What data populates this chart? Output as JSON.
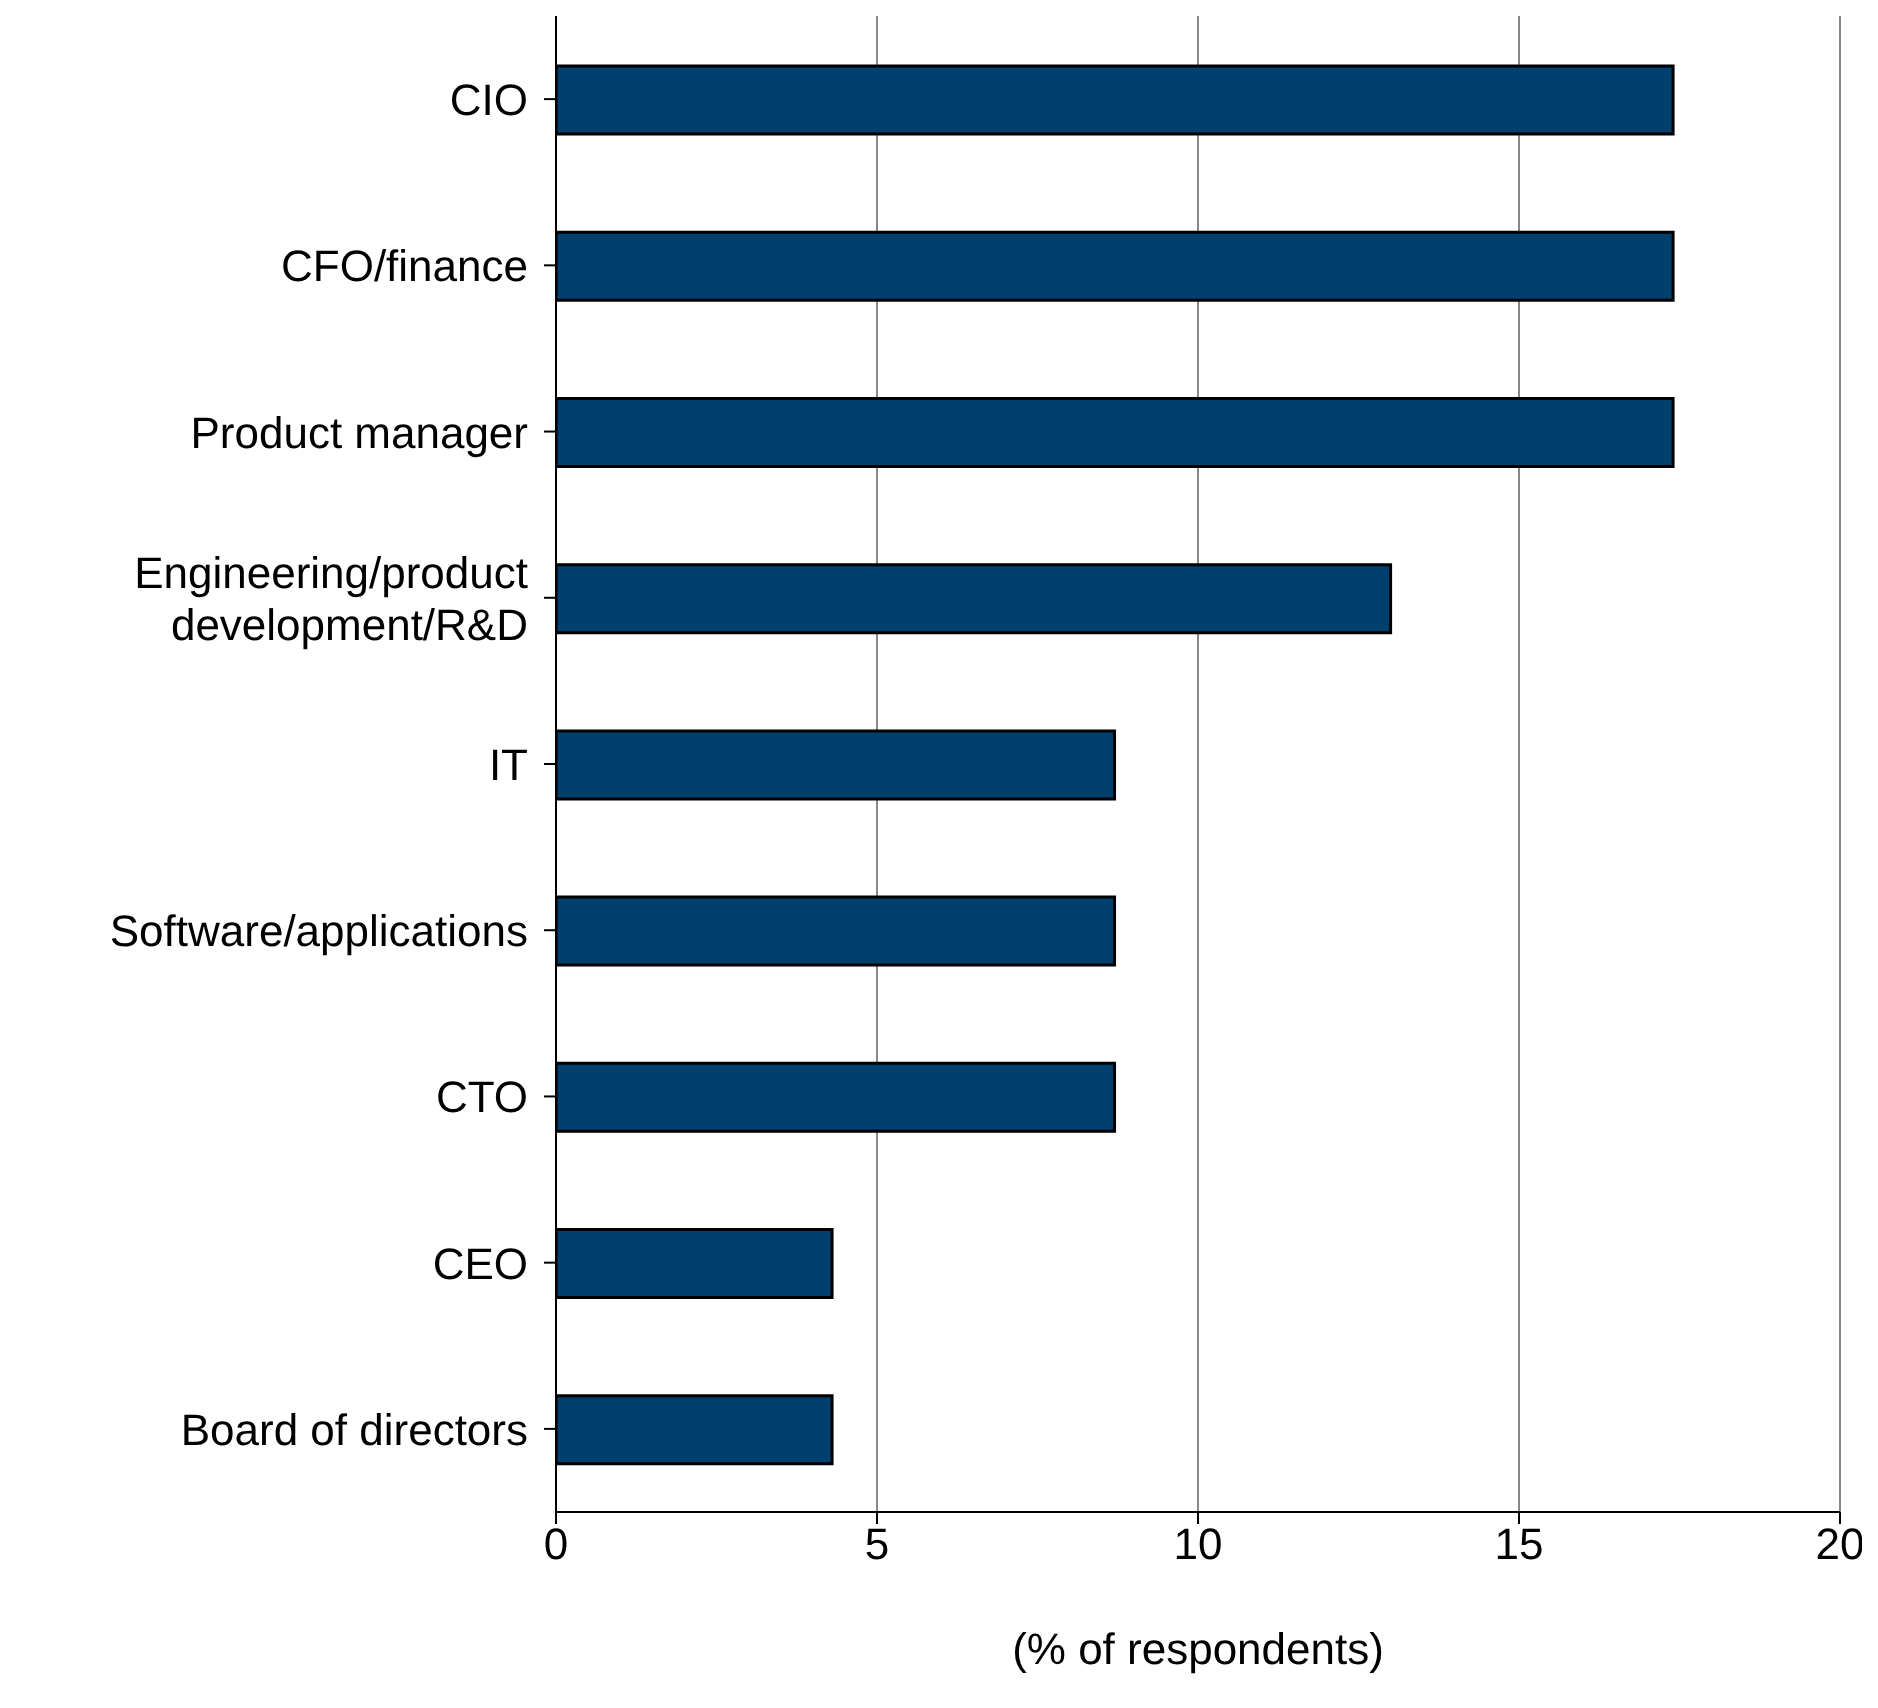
{
  "chart_data": {
    "type": "bar",
    "orientation": "horizontal",
    "xlabel": "(% of respondents)",
    "categories": [
      "CIO",
      "CFO/finance",
      "Product manager",
      "Engineering/product development/R&D",
      "IT",
      "Software/applications",
      "CTO",
      "CEO",
      "Board of directors"
    ],
    "values": [
      17.4,
      17.4,
      17.4,
      13.0,
      8.7,
      8.7,
      8.7,
      4.3,
      4.3
    ],
    "color": "#003f6e",
    "xlim": [
      0,
      20
    ],
    "xticks": [
      0,
      5,
      10,
      15,
      20
    ],
    "grid": "x"
  }
}
